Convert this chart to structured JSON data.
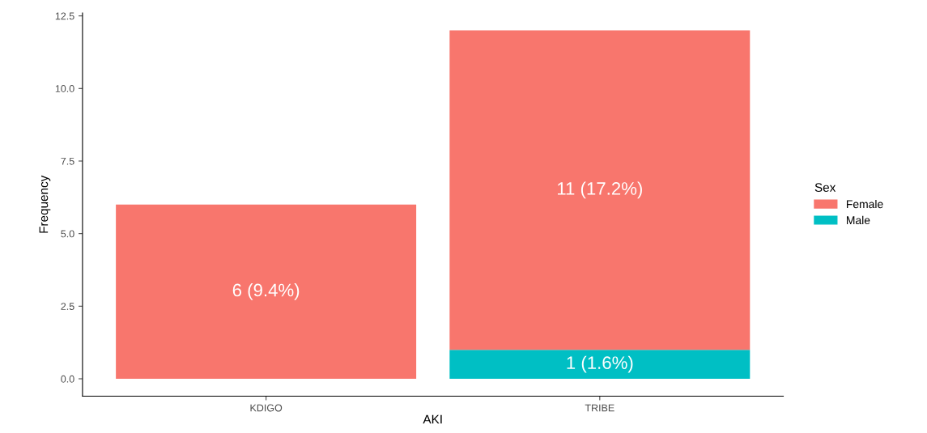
{
  "chart_data": {
    "type": "bar",
    "stacked": true,
    "xlabel": "AKI",
    "ylabel": "Frequency",
    "legend_title": "Sex",
    "legend": "right",
    "categories": [
      "KDIGO",
      "TRIBE"
    ],
    "series": [
      {
        "name": "Male",
        "color": "#00bfc4",
        "values": [
          null,
          1
        ],
        "value_labels": [
          null,
          "1 (1.6%)"
        ]
      },
      {
        "name": "Female",
        "color": "#f8766d",
        "values": [
          6,
          11
        ],
        "value_labels": [
          "6 (9.4%)",
          "11 (17.2%)"
        ]
      }
    ],
    "ylim": [
      -0.6,
      12.6
    ],
    "yticks": [
      {
        "value": 0,
        "label": "0.0"
      },
      {
        "value": 2.5,
        "label": "2.5"
      },
      {
        "value": 5,
        "label": "5.0"
      },
      {
        "value": 7.5,
        "label": "7.5"
      },
      {
        "value": 10,
        "label": "10.0"
      },
      {
        "value": 12.5,
        "label": "12.5"
      }
    ],
    "grid": false
  }
}
